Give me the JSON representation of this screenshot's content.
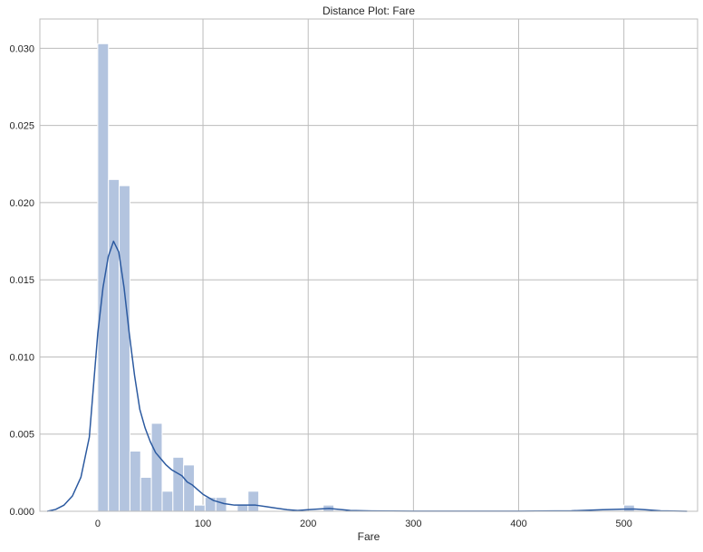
{
  "chart_data": {
    "type": "bar",
    "title": "Distance Plot: Fare",
    "xlabel": "Fare",
    "ylabel": "",
    "xlim": [
      -55,
      570
    ],
    "ylim": [
      0,
      0.0319
    ],
    "xticks": [
      0,
      100,
      200,
      300,
      400,
      500
    ],
    "xtick_labels": [
      "0",
      "100",
      "200",
      "300",
      "400",
      "500"
    ],
    "yticks": [
      0.0,
      0.005,
      0.01,
      0.015,
      0.02,
      0.025,
      0.03
    ],
    "ytick_labels": [
      "0.000",
      "0.005",
      "0.010",
      "0.015",
      "0.020",
      "0.025",
      "0.030"
    ],
    "grid": true,
    "bin_width": 10.2,
    "histogram": {
      "bin_starts": [
        0,
        10.2,
        20.4,
        30.6,
        40.8,
        51.0,
        61.2,
        71.4,
        81.6,
        91.8,
        102.0,
        112.2,
        122.4,
        132.6,
        142.8,
        153.0,
        163.2,
        173.4,
        183.6,
        193.8,
        204.0,
        214.2,
        224.4,
        234.6,
        244.8,
        255.0,
        265.2,
        275.4,
        285.6,
        295.8,
        306.0,
        316.2,
        326.4,
        336.6,
        346.8,
        357.0,
        367.2,
        377.4,
        387.6,
        397.8,
        408.0,
        418.2,
        428.4,
        438.6,
        448.8,
        459.0,
        469.2,
        479.4,
        489.6,
        499.8
      ],
      "values": [
        0.0303,
        0.0215,
        0.0211,
        0.0039,
        0.0022,
        0.0057,
        0.0013,
        0.0035,
        0.003,
        0.0004,
        0.0009,
        0.0009,
        0,
        0.0004,
        0.0013,
        0,
        0,
        0,
        0,
        0,
        0,
        0.0004,
        0,
        0,
        0,
        0,
        0,
        0,
        0,
        0,
        0,
        0,
        0,
        0,
        0,
        0,
        0,
        0,
        0,
        0,
        0,
        0,
        0,
        0,
        0,
        0,
        0,
        0,
        0,
        0.0004
      ]
    },
    "kde": {
      "x": [
        -48,
        -40,
        -32,
        -24,
        -16,
        -8,
        0,
        5,
        10,
        15,
        20,
        25,
        30,
        35,
        40,
        45,
        50,
        55,
        60,
        65,
        70,
        75,
        80,
        85,
        90,
        95,
        100,
        110,
        120,
        130,
        140,
        150,
        160,
        170,
        180,
        190,
        200,
        210,
        220,
        230,
        240,
        260,
        300,
        350,
        400,
        450,
        480,
        500,
        510,
        520,
        535,
        560
      ],
      "y": [
        0.0,
        0.00012,
        0.0004,
        0.001,
        0.0022,
        0.0048,
        0.0115,
        0.0145,
        0.0165,
        0.0175,
        0.0168,
        0.0145,
        0.0115,
        0.0088,
        0.0066,
        0.0054,
        0.0045,
        0.0038,
        0.0034,
        0.003,
        0.0027,
        0.0025,
        0.0023,
        0.0019,
        0.0017,
        0.0014,
        0.0011,
        0.0007,
        0.0005,
        0.0004,
        0.0004,
        0.0004,
        0.0003,
        0.0002,
        0.0001,
        5e-05,
        0.0001,
        0.00015,
        0.00018,
        0.00012,
        5e-05,
        2e-05,
        1e-05,
        1e-05,
        1e-05,
        3e-05,
        0.0001,
        0.00014,
        0.00015,
        0.0001,
        3e-05,
        0.0
      ]
    },
    "colors": {
      "bar_fill": "#b3c4df",
      "bar_edge": "#ffffff",
      "kde_line": "#2c5aa0",
      "grid": "#bcbcbc",
      "axes_edge": "#bcbcbc",
      "text": "#262626"
    }
  }
}
